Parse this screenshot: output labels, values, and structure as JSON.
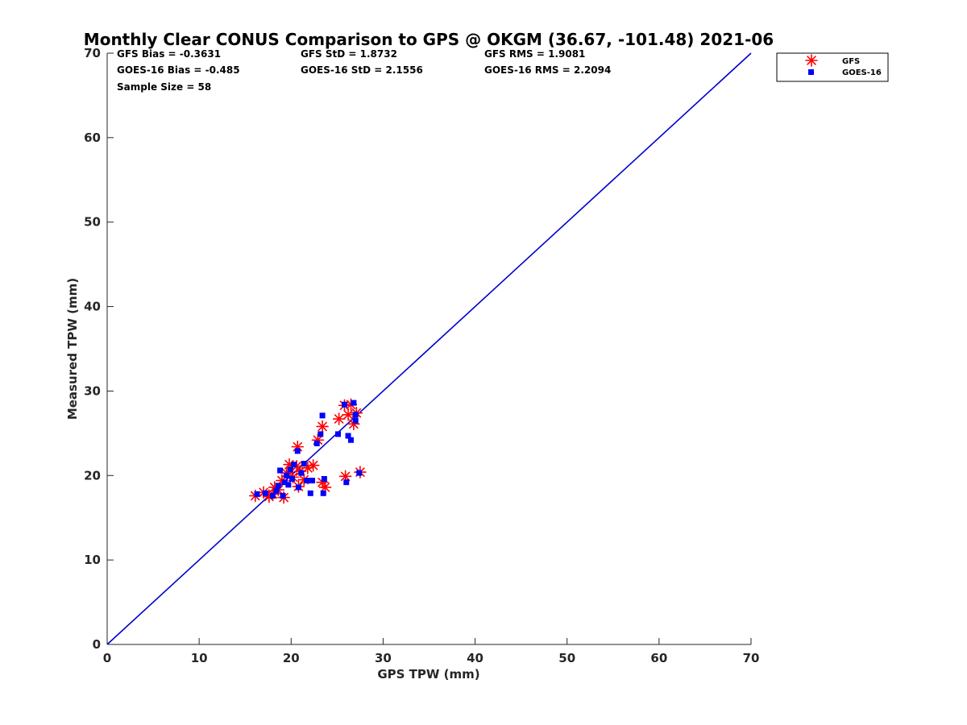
{
  "chart_data": {
    "type": "scatter",
    "title": "Monthly Clear CONUS Comparison to GPS @ OKGM (36.67, -101.48) 2021-06",
    "xlabel": "GPS TPW (mm)",
    "ylabel": "Measured TPW (mm)",
    "xlim": [
      0,
      70
    ],
    "ylim": [
      0,
      70
    ],
    "xticks": [
      "0",
      "10",
      "20",
      "30",
      "40",
      "50",
      "60",
      "70"
    ],
    "yticks": [
      "0",
      "10",
      "20",
      "30",
      "40",
      "50",
      "60",
      "70"
    ],
    "grid": false,
    "legend_position": "top-right, outside plot",
    "stats": [
      [
        "GFS Bias = -0.3631",
        "GFS StD = 1.8732",
        "GFS RMS = 1.9081"
      ],
      [
        "GOES-16 Bias = -0.485",
        "GOES-16 StD = 2.1556",
        "GOES-16 RMS = 2.2094"
      ],
      [
        "Sample Size = 58",
        "",
        ""
      ]
    ],
    "reference_line": {
      "from": [
        0,
        0
      ],
      "to": [
        70,
        70
      ],
      "color": "#0000cc"
    },
    "series": [
      {
        "name": "GFS",
        "marker": "asterisk",
        "color": "#ff0000",
        "points": [
          [
            16.1,
            17.6
          ],
          [
            17.0,
            18.0
          ],
          [
            17.6,
            17.5
          ],
          [
            18.0,
            17.8
          ],
          [
            18.2,
            18.6
          ],
          [
            18.6,
            18.3
          ],
          [
            19.0,
            19.4
          ],
          [
            19.2,
            17.4
          ],
          [
            19.5,
            20.3
          ],
          [
            19.8,
            21.3
          ],
          [
            20.2,
            19.8
          ],
          [
            20.6,
            21.1
          ],
          [
            20.8,
            18.7
          ],
          [
            21.0,
            20.5
          ],
          [
            21.4,
            19.5
          ],
          [
            21.8,
            20.9
          ],
          [
            22.4,
            21.2
          ],
          [
            20.7,
            23.4
          ],
          [
            22.9,
            24.2
          ],
          [
            23.4,
            25.8
          ],
          [
            23.4,
            19.2
          ],
          [
            23.7,
            18.6
          ],
          [
            25.2,
            26.7
          ],
          [
            25.8,
            28.3
          ],
          [
            25.9,
            19.9
          ],
          [
            26.2,
            27.2
          ],
          [
            26.5,
            28.4
          ],
          [
            26.8,
            26.1
          ],
          [
            27.1,
            27.4
          ],
          [
            27.5,
            20.4
          ]
        ]
      },
      {
        "name": "GOES-16",
        "marker": "square",
        "color": "#0000ff",
        "points": [
          [
            16.3,
            17.8
          ],
          [
            17.2,
            17.9
          ],
          [
            18.0,
            17.6
          ],
          [
            18.4,
            18.2
          ],
          [
            18.6,
            18.8
          ],
          [
            18.8,
            20.6
          ],
          [
            19.1,
            17.6
          ],
          [
            19.3,
            19.2
          ],
          [
            19.5,
            20.0
          ],
          [
            19.7,
            18.9
          ],
          [
            19.9,
            20.7
          ],
          [
            20.1,
            19.6
          ],
          [
            20.3,
            21.3
          ],
          [
            20.7,
            22.9
          ],
          [
            20.8,
            18.6
          ],
          [
            21.1,
            20.3
          ],
          [
            21.4,
            21.4
          ],
          [
            21.7,
            19.4
          ],
          [
            22.1,
            17.9
          ],
          [
            22.3,
            19.4
          ],
          [
            22.8,
            23.8
          ],
          [
            23.2,
            24.9
          ],
          [
            23.4,
            27.1
          ],
          [
            23.5,
            17.9
          ],
          [
            23.6,
            19.6
          ],
          [
            25.1,
            24.9
          ],
          [
            25.8,
            28.4
          ],
          [
            26.0,
            19.2
          ],
          [
            26.2,
            24.7
          ],
          [
            26.5,
            24.2
          ],
          [
            26.8,
            28.6
          ],
          [
            27.0,
            26.5
          ],
          [
            27.0,
            27.2
          ],
          [
            27.4,
            20.3
          ]
        ]
      }
    ]
  }
}
